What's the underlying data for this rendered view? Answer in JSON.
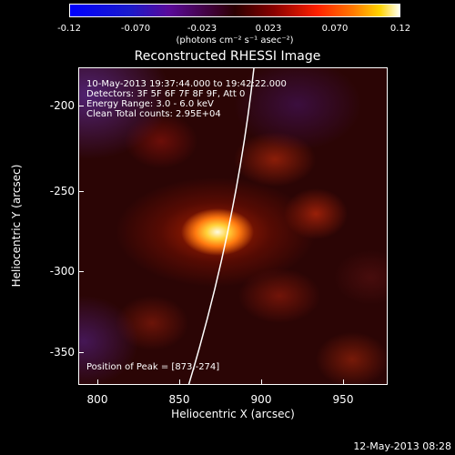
{
  "colorbar": {
    "ticks": [
      "-0.12",
      "-0.070",
      "-0.023",
      "0.023",
      "0.070",
      "0.12"
    ],
    "units_label": "(photons cm⁻² s⁻¹ asec⁻²)"
  },
  "title": "Reconstructed RHESSI Image",
  "info": {
    "time_range": "10-May-2013 19:37:44.000 to 19:42:22.000",
    "detectors": "Detectors: 3F 5F 6F 7F 8F 9F, Att 0",
    "energy_range": "Energy Range: 3.0 - 6.0 keV",
    "clean": "Clean    Total counts: 2.95E+04"
  },
  "peak": "Position of Peak = [873,-274]",
  "axes": {
    "xlabel": "Heliocentric X (arcsec)",
    "ylabel": "Heliocentric Y (arcsec)",
    "xticks": [
      "800",
      "850",
      "900",
      "950"
    ],
    "yticks": [
      "-200",
      "-250",
      "-300",
      "-350"
    ]
  },
  "timestamp": "12-May-2013 08:28"
}
